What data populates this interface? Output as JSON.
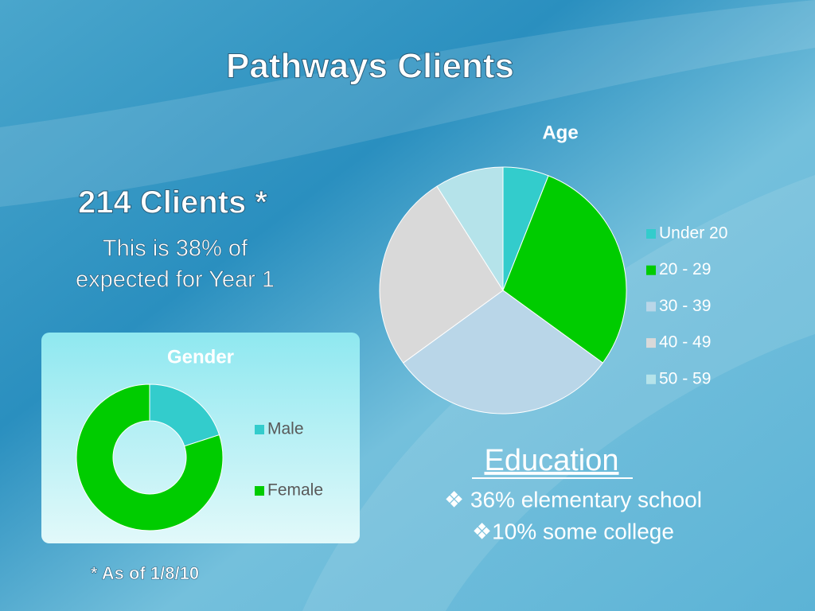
{
  "title": "Pathways Clients",
  "clients": {
    "headline": "214 Clients *",
    "lines": [
      "This is 38% of",
      "expected for Year 1"
    ]
  },
  "education": {
    "heading": "Education",
    "items": [
      "❖ 36% elementary  school",
      "❖10% some college"
    ]
  },
  "footnote": "* As of 1/8/10",
  "chart_data": [
    {
      "type": "pie",
      "title": "Age",
      "categories": [
        "Under 20",
        "20 - 29",
        "30 - 39",
        "40 - 49",
        "50 - 59"
      ],
      "values": [
        6,
        29,
        30,
        26,
        9
      ],
      "colors": [
        "#33cccc",
        "#00cc00",
        "#b9d6e8",
        "#d9d9d9",
        "#b5e3ea"
      ],
      "legend": "right"
    },
    {
      "type": "donut",
      "title": "Gender",
      "categories": [
        "Male",
        "Female"
      ],
      "values": [
        20,
        80
      ],
      "colors": [
        "#33cccc",
        "#00cc00"
      ],
      "legend": "right"
    }
  ]
}
